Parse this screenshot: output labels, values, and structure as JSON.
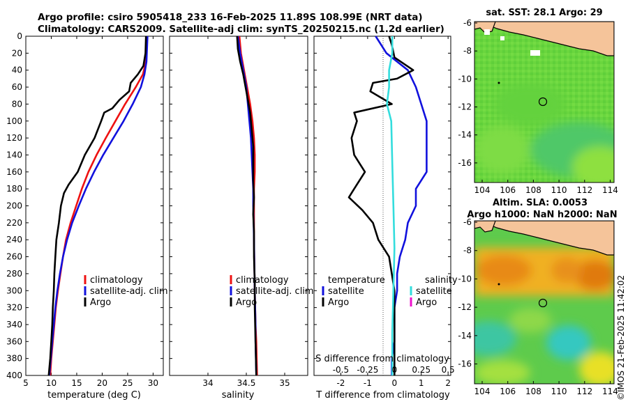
{
  "header": {
    "line1": "Argo profile: csiro 5905418_233 16-Feb-2025 11.89S 108.99E (NRT data)",
    "line2": "Climatology: CARS2009. Satellite-adj clim: synTS_20250215.nc (1.2d earlier)"
  },
  "depth_axis": {
    "ticks": [
      "0",
      "20",
      "40",
      "60",
      "80",
      "100",
      "120",
      "140",
      "160",
      "180",
      "200",
      "220",
      "240",
      "260",
      "280",
      "300",
      "320",
      "340",
      "360",
      "380",
      "400"
    ]
  },
  "colors": {
    "climatology": "#ee1111",
    "satellite": "#1111dd",
    "argo": "#000000",
    "sal_satellite": "#33dddd",
    "sal_argo": "#ee11cc",
    "land": "#f5c49a"
  },
  "legend": {
    "climatology": "climatology",
    "satellite": "satellite-adj. clim",
    "argo": "Argo",
    "diff_temperature": "temperature",
    "diff_salinity": "salinity",
    "diff_satellite": "satellite",
    "diff_argo": "Argo"
  },
  "chart_data": [
    {
      "type": "line",
      "title": "",
      "xlabel": "temperature (deg C)",
      "ylabel": "",
      "xlim": [
        5,
        32
      ],
      "ylim": [
        400,
        0
      ],
      "xticks": [
        "5",
        "10",
        "15",
        "20",
        "25",
        "30"
      ],
      "series": [
        {
          "name": "climatology",
          "depth": [
            0,
            30,
            45,
            60,
            80,
            100,
            120,
            140,
            160,
            180,
            200,
            220,
            240,
            260,
            280,
            300,
            320,
            340,
            360,
            380,
            400
          ],
          "values": [
            28.8,
            28.6,
            28.0,
            26.6,
            24.5,
            22.6,
            20.7,
            18.9,
            17.3,
            16.0,
            14.9,
            13.8,
            12.9,
            12.3,
            11.8,
            11.3,
            10.9,
            10.6,
            10.3,
            10.0,
            9.8
          ]
        },
        {
          "name": "satellite-adj. clim",
          "depth": [
            0,
            30,
            45,
            60,
            80,
            100,
            120,
            140,
            160,
            180,
            200,
            220,
            240,
            260,
            280,
            300,
            320,
            340,
            360,
            380,
            400
          ],
          "values": [
            28.9,
            28.7,
            28.3,
            27.6,
            26.0,
            24.2,
            22.2,
            20.2,
            18.4,
            16.8,
            15.4,
            14.1,
            13.1,
            12.3,
            11.7,
            11.2,
            10.8,
            10.5,
            10.2,
            9.9,
            9.6
          ]
        },
        {
          "name": "Argo",
          "depth": [
            0,
            20,
            35,
            45,
            55,
            65,
            75,
            85,
            90,
            100,
            120,
            140,
            160,
            175,
            185,
            200,
            220,
            240,
            260,
            280,
            300,
            320,
            340,
            360,
            380,
            400
          ],
          "values": [
            28.6,
            28.5,
            28.1,
            27.0,
            25.6,
            25.3,
            23.4,
            22.0,
            20.4,
            19.8,
            18.5,
            16.6,
            15.2,
            13.4,
            12.5,
            11.9,
            11.5,
            11.0,
            10.8,
            10.6,
            10.5,
            10.3,
            10.2,
            10.0,
            9.8,
            9.5
          ]
        }
      ]
    },
    {
      "type": "line",
      "title": "",
      "xlabel": "salinity",
      "ylabel": "",
      "xlim": [
        33.5,
        35.3
      ],
      "ylim": [
        400,
        0
      ],
      "xticks": [
        "34",
        "34.5",
        "35"
      ],
      "series": [
        {
          "name": "climatology",
          "depth": [
            0,
            20,
            40,
            60,
            80,
            100,
            120,
            140,
            160,
            180,
            200,
            240,
            300,
            340,
            360,
            400
          ],
          "values": [
            34.41,
            34.43,
            34.47,
            34.51,
            34.55,
            34.58,
            34.6,
            34.61,
            34.61,
            34.6,
            34.6,
            34.6,
            34.61,
            34.62,
            34.63,
            34.64
          ]
        },
        {
          "name": "satellite-adj. clim",
          "depth": [
            0,
            20,
            40,
            60,
            80,
            100,
            120,
            140,
            160,
            180,
            200,
            240,
            300,
            340,
            360,
            400
          ],
          "values": [
            34.39,
            34.42,
            34.46,
            34.5,
            34.52,
            34.54,
            34.56,
            34.57,
            34.58,
            34.59,
            34.59,
            34.6,
            34.61,
            34.62,
            34.62,
            34.63
          ]
        },
        {
          "name": "Argo",
          "depth": [
            0,
            15,
            30,
            45,
            60,
            75,
            90,
            110,
            130,
            150,
            170,
            190,
            210,
            230,
            260,
            290,
            320,
            360,
            400
          ],
          "values": [
            34.38,
            34.39,
            34.42,
            34.46,
            34.49,
            34.52,
            34.55,
            34.57,
            34.59,
            34.59,
            34.59,
            34.6,
            34.59,
            34.6,
            34.6,
            34.61,
            34.61,
            34.62,
            34.63
          ]
        }
      ]
    },
    {
      "type": "line",
      "title": "",
      "xlabel": "T difference from climatology",
      "xlabel_top": "S difference from climatology",
      "xlim": [
        -3,
        2.1
      ],
      "ylim": [
        400,
        0
      ],
      "xticks": [
        "-2",
        "-1",
        "0",
        "1",
        "2"
      ],
      "s_xticks": [
        "-0.5",
        "-0.25",
        "0",
        "0.25",
        "0.5"
      ],
      "series": [
        {
          "name": "temperature satellite",
          "depth": [
            0,
            20,
            40,
            60,
            80,
            100,
            120,
            140,
            160,
            180,
            200,
            220,
            240,
            260,
            280,
            300,
            320,
            340,
            360,
            380,
            400
          ],
          "values": [
            -0.7,
            -0.3,
            0.5,
            0.8,
            1.0,
            1.2,
            1.2,
            1.2,
            1.2,
            0.8,
            0.8,
            0.5,
            0.4,
            0.2,
            0.1,
            0.1,
            0.0,
            0.0,
            0.0,
            -0.1,
            -0.1
          ]
        },
        {
          "name": "temperature Argo",
          "depth": [
            0,
            10,
            25,
            40,
            50,
            55,
            65,
            80,
            90,
            100,
            120,
            140,
            160,
            180,
            190,
            205,
            220,
            240,
            260,
            280,
            300,
            320,
            350,
            380,
            400
          ],
          "values": [
            -0.2,
            -0.1,
            0.0,
            0.7,
            0.1,
            -0.8,
            -0.9,
            -0.1,
            -1.5,
            -1.4,
            -1.6,
            -1.5,
            -1.1,
            -1.5,
            -1.7,
            -1.2,
            -0.8,
            -0.6,
            -0.2,
            -0.1,
            0.0,
            0.0,
            0.0,
            0.0,
            0.0
          ]
        },
        {
          "name": "salinity satellite",
          "depth": [
            0,
            20,
            40,
            60,
            80,
            100,
            150,
            200,
            250,
            300,
            350,
            400
          ],
          "values": [
            -0.02,
            -0.02,
            -0.05,
            -0.05,
            -0.07,
            -0.03,
            -0.02,
            -0.01,
            0.0,
            -0.01,
            -0.02,
            -0.02
          ]
        },
        {
          "name": "salinity Argo",
          "depth": [],
          "values": []
        }
      ]
    }
  ],
  "maps": {
    "sst": {
      "title": "sat. SST: 28.1 Argo: 29",
      "yticks": [
        "-6",
        "-8",
        "-10",
        "-12",
        "-14",
        "-16"
      ],
      "xticks": [
        "104",
        "106",
        "108",
        "110",
        "112",
        "114"
      ]
    },
    "sla": {
      "title1": "Altim. SLA: 0.0053",
      "title2": "Argo h1000: NaN h2000: NaN",
      "yticks": [
        "-6",
        "-8",
        "-10",
        "-12",
        "-14",
        "-16"
      ],
      "xticks": [
        "104",
        "106",
        "108",
        "110",
        "112",
        "114"
      ]
    }
  },
  "watermark": "©IMOS 21-Feb-2025 11:42:02"
}
